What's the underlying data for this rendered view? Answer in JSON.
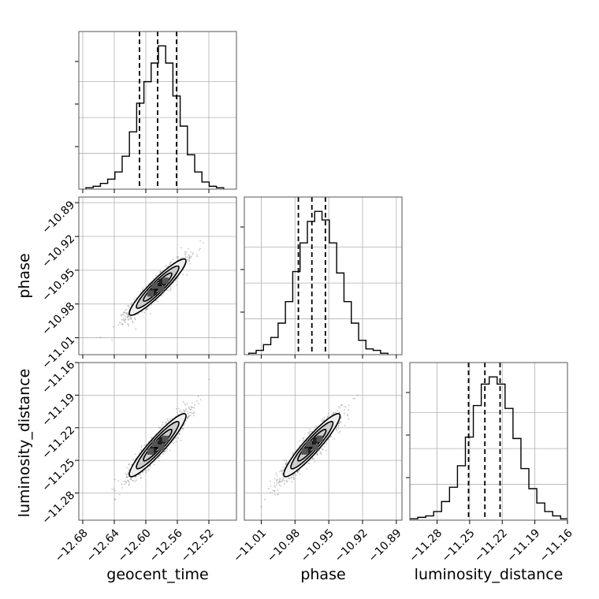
{
  "chart_data": {
    "type": "corner",
    "parameters": [
      "geocent_time",
      "phase",
      "luminosity_distance"
    ],
    "ranges": {
      "geocent_time": [
        -12.685,
        -12.485
      ],
      "phase": [
        -11.025,
        -10.885
      ],
      "luminosity_distance": [
        -11.305,
        -11.16
      ]
    },
    "ticks": {
      "geocent_time": [
        -12.68,
        -12.64,
        -12.6,
        -12.56,
        -12.52
      ],
      "phase": [
        -11.01,
        -10.98,
        -10.95,
        -10.92,
        -10.89
      ],
      "luminosity_distance": [
        -11.28,
        -11.25,
        -11.22,
        -11.19,
        -11.16
      ]
    },
    "tick_labels": {
      "geocent_time": [
        "−12.68",
        "−12.64",
        "−12.60",
        "−12.56",
        "−12.52"
      ],
      "phase": [
        "−11.01",
        "−10.98",
        "−10.95",
        "−10.92",
        "−10.89"
      ],
      "luminosity_distance": [
        "−11.28",
        "−11.25",
        "−11.22",
        "−11.19",
        "−11.16"
      ]
    },
    "axis_labels": {
      "geocent_time": "geocent_time",
      "phase": "phase",
      "luminosity_distance": "luminosity_distance"
    },
    "quantiles": {
      "geocent_time": [
        -12.608,
        -12.585,
        -12.561
      ],
      "phase": [
        -10.977,
        -10.965,
        -10.953
      ],
      "luminosity_distance": [
        -11.251,
        -11.236,
        -11.222
      ]
    },
    "histograms": {
      "geocent_time": {
        "edges_start": -12.676,
        "bin_width": 0.0092,
        "counts": [
          1,
          2,
          4,
          7,
          12,
          23,
          40,
          60,
          75,
          88,
          100,
          88,
          65,
          44,
          24,
          12,
          5,
          2,
          1
        ]
      },
      "phase": {
        "edges_start": -11.021,
        "bin_width": 0.0065,
        "counts": [
          1,
          3,
          7,
          12,
          22,
          37,
          58,
          78,
          93,
          100,
          94,
          78,
          57,
          37,
          22,
          10,
          4,
          3,
          1
        ]
      },
      "luminosity_distance": {
        "edges_start": -11.305,
        "bin_width": 0.0073,
        "counts": [
          1,
          2,
          3,
          6,
          13,
          23,
          38,
          58,
          80,
          95,
          100,
          95,
          78,
          57,
          36,
          22,
          12,
          6,
          3,
          1
        ]
      }
    },
    "correlations": [
      {
        "x": "geocent_time",
        "y": "phase",
        "mean": [
          -12.585,
          -10.965
        ],
        "sigma": [
          0.018,
          0.0125
        ],
        "rho": 0.93
      },
      {
        "x": "geocent_time",
        "y": "luminosity_distance",
        "mean": [
          -12.585,
          -11.236
        ],
        "sigma": [
          0.018,
          0.0145
        ],
        "rho": 0.93
      },
      {
        "x": "phase",
        "y": "luminosity_distance",
        "mean": [
          -10.965,
          -11.236
        ],
        "sigma": [
          0.0125,
          0.0145
        ],
        "rho": 0.93
      }
    ],
    "grid": true,
    "colors": {
      "line": "#000000",
      "scatter": "#808080",
      "grid": "#b0b0b0",
      "fill_levels": [
        "#eeeeee",
        "#cccccc",
        "#888888",
        "#444444",
        "#000000"
      ]
    }
  }
}
